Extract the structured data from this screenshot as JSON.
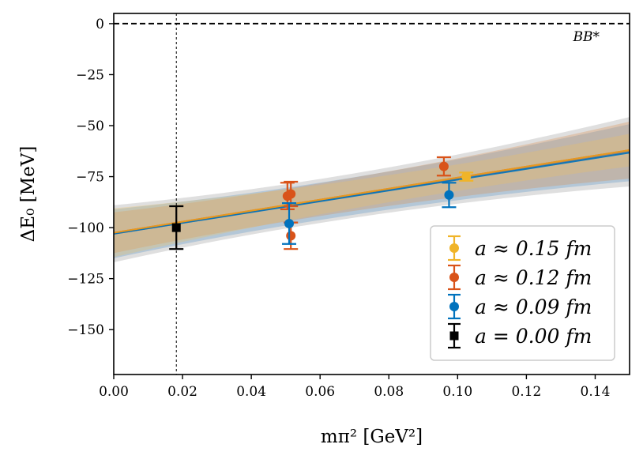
{
  "chart_data": {
    "type": "scatter",
    "xlabel": "mπ² [GeV²]",
    "ylabel": "ΔE₀ [MeV]",
    "xlim": [
      0.0,
      0.15
    ],
    "ylim": [
      -172,
      5
    ],
    "x_ticks": [
      "0.00",
      "0.02",
      "0.04",
      "0.06",
      "0.08",
      "0.10",
      "0.12",
      "0.14"
    ],
    "y_ticks": [
      "0",
      "−25",
      "−50",
      "−75",
      "−100",
      "−125",
      "−150"
    ],
    "x_tick_values": [
      0.0,
      0.02,
      0.04,
      0.06,
      0.08,
      0.1,
      0.12,
      0.14
    ],
    "y_tick_values": [
      0,
      -25,
      -50,
      -75,
      -100,
      -125,
      -150
    ],
    "threshold": {
      "y": 0,
      "label": "BB*"
    },
    "physical_point_x": 0.0182,
    "series": [
      {
        "name": "a ≈ 0.15 fm",
        "color": "#f0b429",
        "marker": "circle",
        "points": [
          {
            "x": 0.1025,
            "y": -75,
            "err": 2
          }
        ],
        "fit": {
          "intercept": -102.5,
          "slope": 270,
          "band_at_zero": 12,
          "band_at_end": 8
        }
      },
      {
        "name": "a ≈ 0.12 fm",
        "color": "#d95319",
        "marker": "circle",
        "points": [
          {
            "x": 0.0505,
            "y": -84.5,
            "err": 6.5
          },
          {
            "x": 0.0515,
            "y": -83.5,
            "err": 6
          },
          {
            "x": 0.0515,
            "y": -104,
            "err": 6.5
          },
          {
            "x": 0.096,
            "y": -70,
            "err": 4.5
          }
        ],
        "fit": {
          "intercept": -102.5,
          "slope": 270,
          "band_at_zero": 10,
          "band_at_end": 14
        }
      },
      {
        "name": "a ≈ 0.09 fm",
        "color": "#0072bd",
        "marker": "circle",
        "points": [
          {
            "x": 0.051,
            "y": -98,
            "err": 10
          },
          {
            "x": 0.0975,
            "y": -84,
            "err": 6
          }
        ],
        "fit": {
          "intercept": -103,
          "slope": 265,
          "band_at_zero": 12,
          "band_at_end": 14
        }
      },
      {
        "name": "a = 0.00 fm",
        "color": "#000000",
        "marker": "square",
        "points": [
          {
            "x": 0.0182,
            "y": -100,
            "err": 10.5
          }
        ],
        "fit": {
          "intercept": -103,
          "slope": 268,
          "band_at_zero": 14,
          "band_at_end": 17
        }
      }
    ],
    "legend_position": "lower-right"
  }
}
